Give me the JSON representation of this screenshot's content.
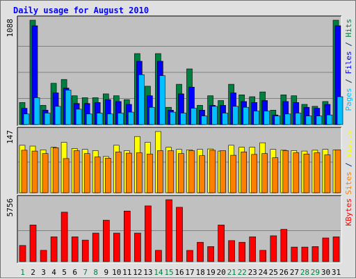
{
  "chart_data": {
    "type": "bar",
    "title": "Daily usage for August 2010",
    "categories": [
      "1",
      "2",
      "3",
      "4",
      "5",
      "6",
      "7",
      "8",
      "9",
      "10",
      "11",
      "12",
      "13",
      "14",
      "15",
      "16",
      "17",
      "18",
      "19",
      "20",
      "21",
      "22",
      "23",
      "24",
      "25",
      "26",
      "27",
      "28",
      "29",
      "30",
      "31"
    ],
    "weekend_days": [
      "1",
      "7",
      "8",
      "14",
      "15",
      "21",
      "22",
      "28",
      "29"
    ],
    "panels": [
      {
        "id": "hits",
        "ymax": 1088,
        "ymax_label": "1088",
        "legend": [
          {
            "text": "Pages",
            "color": "#00c0ff"
          },
          {
            "text": " / ",
            "color": "#003060"
          },
          {
            "text": "Files",
            "color": "#0000ff"
          },
          {
            "text": " / ",
            "color": "#003060"
          },
          {
            "text": "Hits",
            "color": "#008040"
          }
        ],
        "series": [
          {
            "name": "Hits",
            "color": "#008040",
            "values": [
              230,
              1088,
              200,
              430,
              470,
              300,
              280,
              280,
              320,
              300,
              260,
              740,
              400,
              740,
              180,
              420,
              580,
              200,
              300,
              250,
              420,
              310,
              290,
              340,
              150,
              310,
              300,
              210,
              190,
              240,
              1088
            ]
          },
          {
            "name": "Files",
            "color": "#0000ff",
            "values": [
              170,
              1030,
              150,
              330,
              380,
              220,
              220,
              230,
              260,
              240,
              210,
              660,
              300,
              660,
              150,
              320,
              390,
              150,
              200,
              200,
              330,
              240,
              230,
              250,
              100,
              240,
              230,
              180,
              170,
              210,
              1030
            ]
          },
          {
            "name": "Pages",
            "color": "#00c0ff",
            "values": [
              110,
              280,
              120,
              190,
              360,
              160,
              110,
              120,
              110,
              120,
              130,
              520,
              180,
              510,
              130,
              120,
              170,
              90,
              190,
              120,
              190,
              180,
              140,
              140,
              90,
              110,
              120,
              90,
              90,
              100,
              290
            ]
          }
        ]
      },
      {
        "id": "visits",
        "ymax": 147,
        "ymax_label": "147",
        "legend": [
          {
            "text": "Sites",
            "color": "#ff8000"
          },
          {
            "text": " / ",
            "color": "#003060"
          },
          {
            "text": "Visits",
            "color": "#ffff00"
          }
        ],
        "series": [
          {
            "name": "Visits",
            "color": "#ffff00",
            "values": [
              114,
              112,
              103,
              109,
              121,
              106,
              104,
              101,
              87,
              114,
              101,
              135,
              121,
              147,
              109,
              104,
              103,
              104,
              105,
              100,
              114,
              109,
              109,
              120,
              104,
              102,
              101,
              100,
              102,
              104,
              103
            ]
          },
          {
            "name": "Sites",
            "color": "#ff8000",
            "values": [
              102,
              100,
              94,
              108,
              82,
              101,
              94,
              86,
              83,
              98,
              95,
              96,
              93,
              101,
              101,
              94,
              101,
              89,
              102,
              101,
              90,
              98,
              92,
              94,
              84,
              101,
              96,
              93,
              96,
              91,
              103
            ]
          }
        ]
      },
      {
        "id": "kbytes",
        "ymax": 5756,
        "ymax_label": "5756",
        "legend": [
          {
            "text": "KBytes",
            "color": "#ff0000"
          }
        ],
        "series": [
          {
            "name": "KBytes",
            "color": "#ff0000",
            "values": [
              1500,
              3400,
              1050,
              2300,
              4600,
              2300,
              2000,
              2650,
              3850,
              2650,
              4700,
              2650,
              5180,
              1050,
              5756,
              5050,
              1040,
              1800,
              1400,
              3400,
              1950,
              1800,
              2300,
              1050,
              2400,
              3000,
              1350,
              1350,
              1400,
              2200,
              2300
            ]
          }
        ]
      }
    ]
  }
}
